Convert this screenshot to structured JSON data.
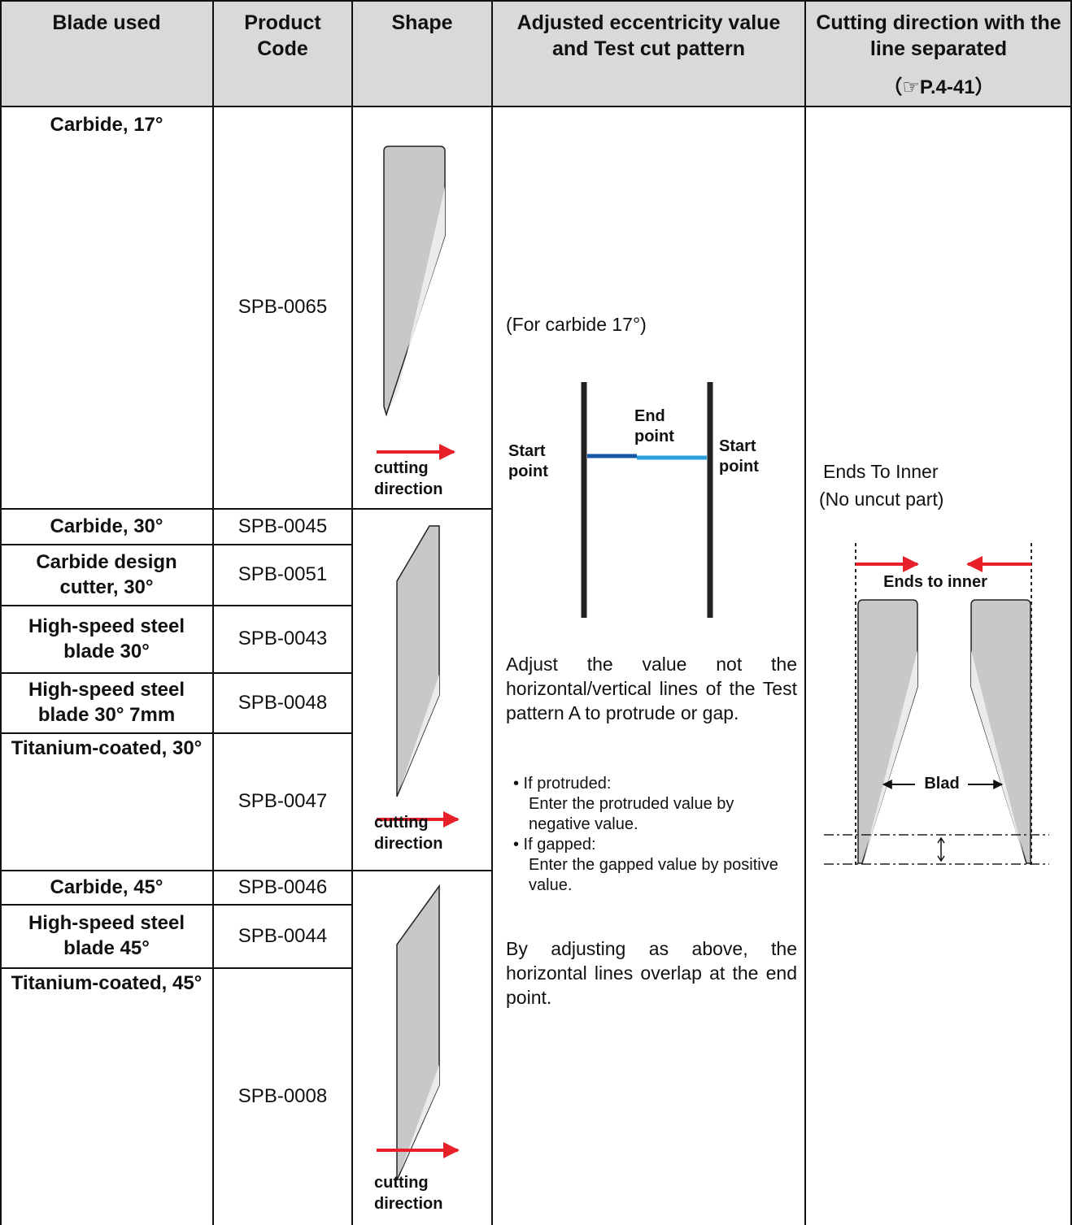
{
  "header": [
    "Blade used",
    "Product Code",
    "Shape",
    "Adjusted eccentricity value and Test cut pattern",
    "Cutting direction with the line separated",
    "（☞P.4-41）"
  ],
  "rows": [
    {
      "blade": "Carbide, 17°",
      "code": "SPB-0065"
    },
    {
      "blade": "Carbide, 30°",
      "code": "SPB-0045"
    },
    {
      "blade": "Carbide design cutter, 30°",
      "code": "SPB-0051"
    },
    {
      "blade": "High-speed steel blade 30°",
      "code": "SPB-0043"
    },
    {
      "blade": "High-speed steel blade 30° 7mm",
      "code": "SPB-0048"
    },
    {
      "blade": "Titanium-coated, 30°",
      "code": "SPB-0047"
    },
    {
      "blade": "Carbide, 45°",
      "code": "SPB-0046"
    },
    {
      "blade": "High-speed steel blade 45°",
      "code": "SPB-0044"
    },
    {
      "blade": "Titanium-coated, 45°",
      "code": "SPB-0008"
    }
  ],
  "shapes": [
    {
      "caption": "cutting direction"
    },
    {
      "caption": "cutting direction"
    },
    {
      "caption": "cutting direction"
    }
  ],
  "adjustment": {
    "note": "(For carbide 17°)",
    "pattern_labels": [
      "Start point",
      "End point",
      "Start point"
    ],
    "instruction": "Adjust the value not the horizontal/vertical lines of the Test pattern A to protrude or gap.",
    "bullets": [
      {
        "label": "• If protruded:",
        "text": "Enter the protruded value by negative value."
      },
      {
        "label": "• If gapped:",
        "text": "Enter the gapped value by positive value."
      }
    ],
    "result": "By adjusting as above, the horizontal lines overlap at the end point."
  },
  "direction": {
    "title": "Ends To Inner",
    "subtitle": "(No uncut part)",
    "diagram_label": "Ends to inner",
    "blade_label": "Blad"
  }
}
